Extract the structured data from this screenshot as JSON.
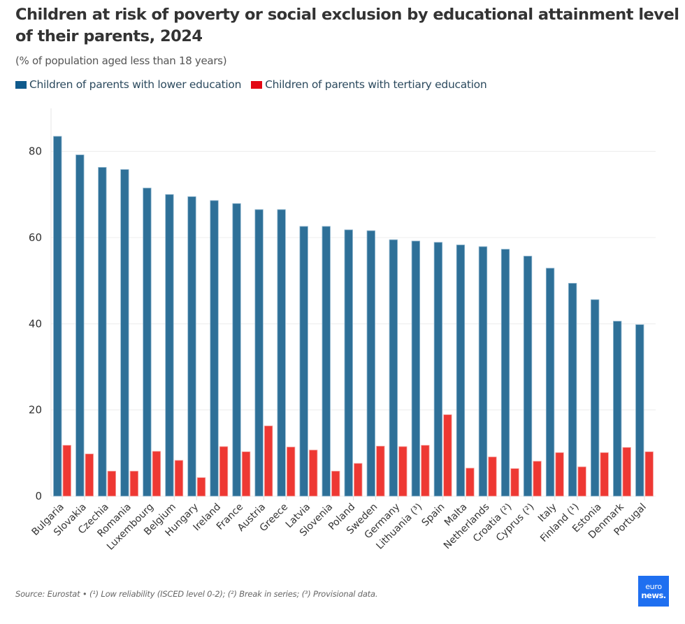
{
  "header": {
    "title": "Children at risk of poverty or social exclusion by educational attainment level of their parents, 2024",
    "subtitle": "(% of population aged less than 18 years)"
  },
  "legend": [
    {
      "label": "Children of parents with lower education",
      "color": "#0f5a8c"
    },
    {
      "label": "Children of parents with tertiary education",
      "color": "#e30613"
    }
  ],
  "footer": {
    "source": "Source: Eurostat • (¹) Low reliability (ISCED level 0-2); (²) Break in series; (³) Provisional data."
  },
  "logo": {
    "line1": "euro",
    "line2": "news.",
    "color": "#1f6ff0"
  },
  "chart_data": {
    "type": "bar",
    "title": "Children at risk of poverty or social exclusion by educational attainment level of their parents, 2024",
    "subtitle": "(% of population aged less than 18 years)",
    "xlabel": "",
    "ylabel": "",
    "ylim": [
      0,
      90
    ],
    "yticks": [
      0,
      20,
      40,
      60,
      80
    ],
    "grid": true,
    "legend_position": "top-left",
    "categories": [
      "Bulgaria",
      "Slovakia",
      "Czechia",
      "Romania",
      "Luxembourg",
      "Belgium",
      "Hungary",
      "Ireland",
      "France",
      "Austria",
      "Greece",
      "Latvia",
      "Slovenia",
      "Poland",
      "Sweden",
      "Germany",
      "Lithuania (³)",
      "Spain",
      "Malta",
      "Netherlands",
      "Croatia (²)",
      "Cyprus (²)",
      "Italy",
      "Finland (¹)",
      "Estonia",
      "Denmark",
      "Portugal"
    ],
    "series": [
      {
        "name": "Children of parents with lower education",
        "color": "#2e7098",
        "values": [
          83.5,
          79.2,
          76.3,
          75.8,
          71.5,
          70.0,
          69.5,
          68.6,
          67.9,
          66.5,
          66.5,
          62.6,
          62.6,
          61.8,
          61.6,
          59.5,
          59.2,
          58.9,
          58.3,
          57.9,
          57.3,
          55.7,
          52.9,
          49.4,
          45.6,
          40.6,
          39.8
        ]
      },
      {
        "name": "Children of parents with tertiary education",
        "color": "#ee3833",
        "values": [
          11.8,
          9.8,
          5.8,
          5.8,
          10.4,
          8.3,
          4.3,
          11.5,
          10.3,
          16.3,
          11.4,
          10.7,
          5.8,
          7.6,
          11.6,
          11.5,
          11.8,
          18.9,
          6.5,
          9.1,
          6.4,
          8.1,
          10.1,
          6.8,
          10.1,
          11.3,
          10.3
        ]
      }
    ]
  }
}
